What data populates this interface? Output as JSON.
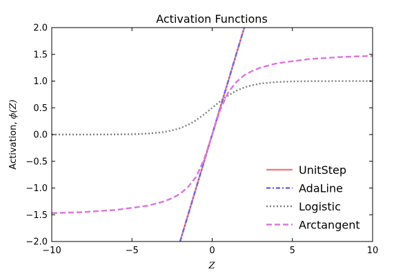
{
  "chart_data": {
    "type": "line",
    "title": "Activation Functions",
    "xlabel": "Z",
    "ylabel": "Activation, ϕ(Z)",
    "ylabel_prefix": "Activation, ",
    "ylabel_math": "ϕ(Z)",
    "xlim": [
      -10,
      10
    ],
    "ylim": [
      -2,
      2
    ],
    "xticks": [
      -10,
      -5,
      0,
      5,
      10
    ],
    "xtick_labels": [
      "−10",
      "−5",
      "0",
      "5",
      "10"
    ],
    "yticks": [
      2.0,
      1.5,
      1.0,
      0.5,
      0.0,
      -0.5,
      -1.0,
      -1.5,
      -2.0
    ],
    "ytick_labels": [
      "2.0",
      "1.5",
      "1.0",
      "0.5",
      "0.0",
      "−0.5",
      "−1.0",
      "−1.5",
      "−2.0"
    ],
    "grid": false,
    "legend_position": "bottom-right",
    "series": [
      {
        "name": "UnitStep",
        "color": "#f08080",
        "style": "solid",
        "x": [
          -2.0,
          2.0
        ],
        "y": [
          -2.0,
          2.0
        ]
      },
      {
        "name": "AdaLine",
        "color": "#6666ee",
        "style": "dashdot",
        "x": [
          -2.0,
          2.0
        ],
        "y": [
          -2.0,
          2.0
        ]
      },
      {
        "name": "Logistic",
        "color": "#808080",
        "style": "dotted",
        "x": [
          -10,
          -9,
          -8,
          -7,
          -6,
          -5,
          -4,
          -3,
          -2.5,
          -2,
          -1.5,
          -1,
          -0.5,
          0,
          0.5,
          1,
          1.5,
          2,
          2.5,
          3,
          4,
          5,
          6,
          7,
          8,
          9,
          10
        ],
        "y": [
          0.0,
          0.0001,
          0.0003,
          0.0009,
          0.0025,
          0.0067,
          0.018,
          0.047,
          0.076,
          0.119,
          0.182,
          0.269,
          0.378,
          0.5,
          0.622,
          0.731,
          0.818,
          0.881,
          0.924,
          0.953,
          0.982,
          0.993,
          0.998,
          0.999,
          1.0,
          1.0,
          1.0
        ]
      },
      {
        "name": "Arctangent",
        "color": "#dd77dd",
        "style": "dashed",
        "x": [
          -10,
          -9,
          -8,
          -7,
          -6,
          -5,
          -4,
          -3,
          -2.5,
          -2,
          -1.5,
          -1,
          -0.5,
          0,
          0.5,
          1,
          1.5,
          2,
          2.5,
          3,
          4,
          5,
          6,
          7,
          8,
          9,
          10
        ],
        "y": [
          -1.47,
          -1.46,
          -1.45,
          -1.43,
          -1.41,
          -1.37,
          -1.33,
          -1.25,
          -1.19,
          -1.11,
          -0.98,
          -0.79,
          -0.46,
          0.0,
          0.46,
          0.79,
          0.98,
          1.11,
          1.19,
          1.25,
          1.33,
          1.37,
          1.41,
          1.43,
          1.45,
          1.46,
          1.47
        ]
      }
    ]
  }
}
